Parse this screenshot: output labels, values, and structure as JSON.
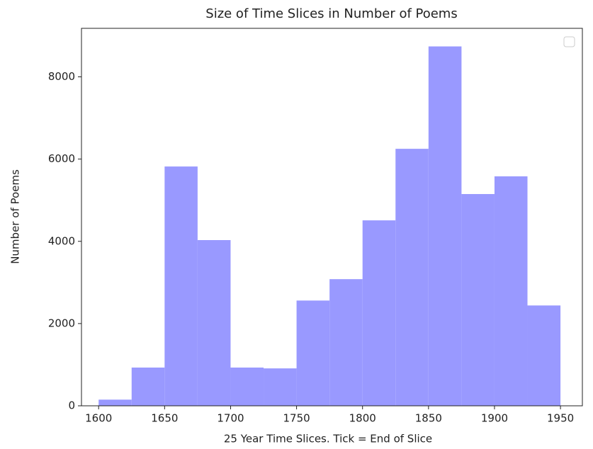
{
  "chart_data": {
    "type": "histogram",
    "title": "Size of Time Slices in Number of Poems",
    "x_label": "25 Year Time Slices. Tick = End of Slice",
    "y_label": "Number of Poems",
    "bins": [
      1600,
      1625,
      1650,
      1675,
      1700,
      1725,
      1750,
      1775,
      1800,
      1825,
      1850,
      1875,
      1900,
      1925,
      1950
    ],
    "values": [
      150,
      930,
      5820,
      4030,
      930,
      910,
      2560,
      3080,
      4510,
      6250,
      8740,
      5150,
      5580,
      2440
    ],
    "color": "#9999ff",
    "xlim": [
      1587,
      1966.6
    ],
    "xticks": [
      1600,
      1650,
      1700,
      1750,
      1800,
      1850,
      1900,
      1950
    ],
    "ylim": [
      0,
      9180
    ],
    "yticks": [
      0,
      2000,
      4000,
      6000,
      8000
    ],
    "grid": false
  }
}
